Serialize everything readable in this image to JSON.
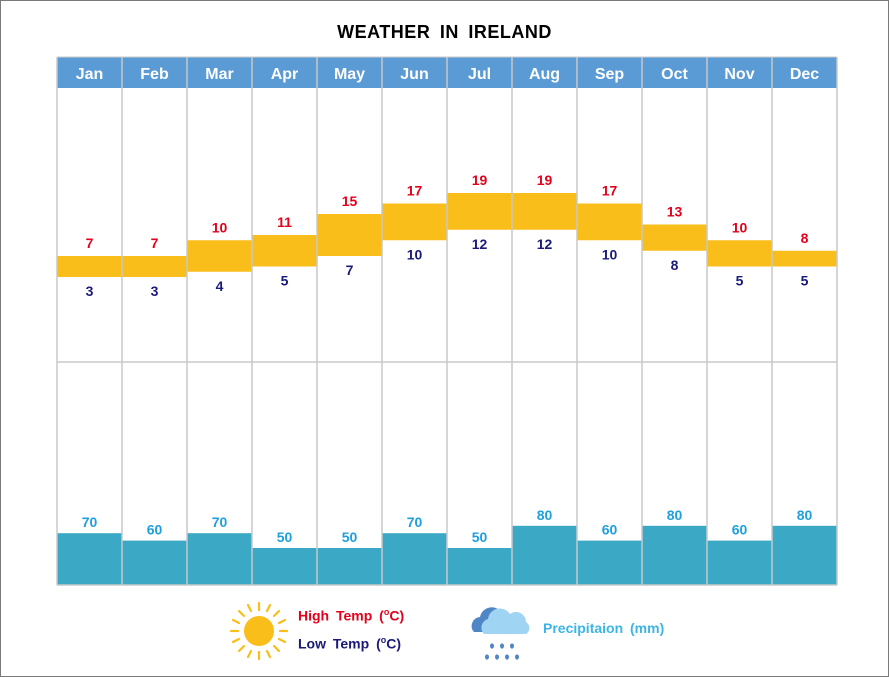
{
  "title": "WEATHER  IN  IRELAND",
  "legend": {
    "high_label": "High  Temp  (",
    "low_label": "Low  Temp  (",
    "degree_sup": "o",
    "unit_suffix": "C)",
    "precip_label": "Precipitaion  (mm)",
    "sun_icon": "sun-icon",
    "rain_icon": "rain-cloud-icon"
  },
  "colors": {
    "header_bg": "#5b9bd5",
    "header_text": "#ffffff",
    "temp_bar": "#f9be1a",
    "high_text": "#e3001b",
    "low_text": "#1a1a7a",
    "precip_bar": "#3ba9c6",
    "precip_text": "#1ea0de",
    "grid": "#c8c8c8"
  },
  "chart_data": {
    "type": "bar",
    "title": "WEATHER  IN  IRELAND",
    "categories": [
      "Jan",
      "Feb",
      "Mar",
      "Apr",
      "May",
      "Jun",
      "Jul",
      "Aug",
      "Sep",
      "Oct",
      "Nov",
      "Dec"
    ],
    "series": [
      {
        "name": "High Temp (°C)",
        "values": [
          7,
          7,
          10,
          11,
          15,
          17,
          19,
          19,
          17,
          13,
          10,
          8
        ]
      },
      {
        "name": "Low Temp (°C)",
        "values": [
          3,
          3,
          4,
          5,
          7,
          10,
          12,
          12,
          10,
          8,
          5,
          5
        ]
      },
      {
        "name": "Precipitaion (mm)",
        "values": [
          70,
          60,
          70,
          50,
          50,
          70,
          50,
          80,
          60,
          80,
          60,
          80
        ]
      }
    ],
    "temp_style": "floating range bars (low to high)",
    "precip_style": "bars from baseline",
    "legend_position": "bottom-center",
    "grid": true
  }
}
